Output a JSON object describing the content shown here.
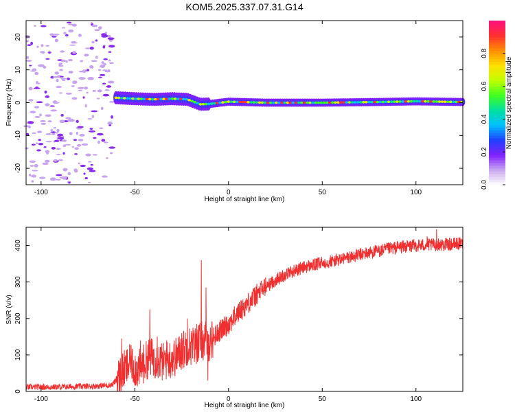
{
  "title": "KOM5.2025.337.07.31.G14",
  "colors": {
    "snr_line": "#f03030",
    "axis": "#000000",
    "background": "#ffffff"
  },
  "chart_data": [
    {
      "type": "heatmap",
      "name": "spectrogram",
      "xlabel": "Height of straight line (km)",
      "ylabel": "Frequency (Hz)",
      "xlim": [
        -108,
        125
      ],
      "ylim": [
        -25,
        25
      ],
      "xticks": [
        -100,
        -50,
        0,
        50,
        100
      ],
      "yticks": [
        -20,
        -10,
        0,
        10,
        20
      ],
      "colorbar": {
        "label": "Normalized spectral amplitude",
        "range": [
          0,
          1
        ],
        "ticks": [
          0.0,
          0.2,
          0.4,
          0.6,
          0.8
        ],
        "tick_labels": [
          "0.0",
          "0.2",
          "0.4",
          "0.6",
          "0.8"
        ],
        "colormap": [
          "#ffffff",
          "#c8a8f0",
          "#8020ff",
          "#2040ff",
          "#00c0ff",
          "#00e0a0",
          "#40ff20",
          "#c0ff00",
          "#ffe000",
          "#ff9000",
          "#ff3030",
          "#ff1080"
        ]
      },
      "noise_region_x": [
        -108,
        -62
      ],
      "ridge": [
        {
          "x": -60,
          "f": 1.5
        },
        {
          "x": -50,
          "f": 1.2
        },
        {
          "x": -40,
          "f": 1.0
        },
        {
          "x": -30,
          "f": 1.2
        },
        {
          "x": -22,
          "f": 1.0
        },
        {
          "x": -15,
          "f": -0.5
        },
        {
          "x": -10,
          "f": -0.4
        },
        {
          "x": 0,
          "f": 0.3
        },
        {
          "x": 20,
          "f": 0.0
        },
        {
          "x": 50,
          "f": 0.0
        },
        {
          "x": 80,
          "f": 0.2
        },
        {
          "x": 100,
          "f": 0.4
        },
        {
          "x": 125,
          "f": 0.2
        }
      ]
    },
    {
      "type": "line",
      "name": "snr",
      "xlabel": "Height of straight line (km)",
      "ylabel": "SNR (v/v)",
      "xlim": [
        -108,
        125
      ],
      "ylim": [
        0,
        450
      ],
      "xticks": [
        -100,
        -50,
        0,
        50,
        100
      ],
      "yticks": [
        0,
        100,
        200,
        300,
        400
      ],
      "anchors": [
        {
          "x": -108,
          "y": 12
        },
        {
          "x": -90,
          "y": 12
        },
        {
          "x": -70,
          "y": 15
        },
        {
          "x": -62,
          "y": 18
        },
        {
          "x": -57,
          "y": 50
        },
        {
          "x": -53,
          "y": 75
        },
        {
          "x": -48,
          "y": 60
        },
        {
          "x": -42,
          "y": 95
        },
        {
          "x": -35,
          "y": 80
        },
        {
          "x": -28,
          "y": 95
        },
        {
          "x": -22,
          "y": 125
        },
        {
          "x": -18,
          "y": 125
        },
        {
          "x": -15,
          "y": 140
        },
        {
          "x": -10,
          "y": 135
        },
        {
          "x": -5,
          "y": 165
        },
        {
          "x": 0,
          "y": 185
        },
        {
          "x": 5,
          "y": 215
        },
        {
          "x": 12,
          "y": 250
        },
        {
          "x": 18,
          "y": 280
        },
        {
          "x": 25,
          "y": 305
        },
        {
          "x": 32,
          "y": 325
        },
        {
          "x": 40,
          "y": 340
        },
        {
          "x": 50,
          "y": 352
        },
        {
          "x": 60,
          "y": 362
        },
        {
          "x": 70,
          "y": 375
        },
        {
          "x": 80,
          "y": 385
        },
        {
          "x": 90,
          "y": 395
        },
        {
          "x": 100,
          "y": 400
        },
        {
          "x": 110,
          "y": 402
        },
        {
          "x": 125,
          "y": 405
        }
      ],
      "spikes": [
        {
          "x": -57,
          "y": 145
        },
        {
          "x": -52,
          "y": 125
        },
        {
          "x": -47,
          "y": 140
        },
        {
          "x": -42,
          "y": 225
        },
        {
          "x": -38,
          "y": 150
        },
        {
          "x": -33,
          "y": 140
        },
        {
          "x": -25,
          "y": 160
        },
        {
          "x": -22,
          "y": 200
        },
        {
          "x": -17,
          "y": 185
        },
        {
          "x": -14.5,
          "y": 360
        },
        {
          "x": -12,
          "y": 285
        },
        {
          "x": -11,
          "y": 30
        },
        {
          "x": 111,
          "y": 445
        },
        {
          "x": 106,
          "y": 425
        }
      ]
    }
  ]
}
